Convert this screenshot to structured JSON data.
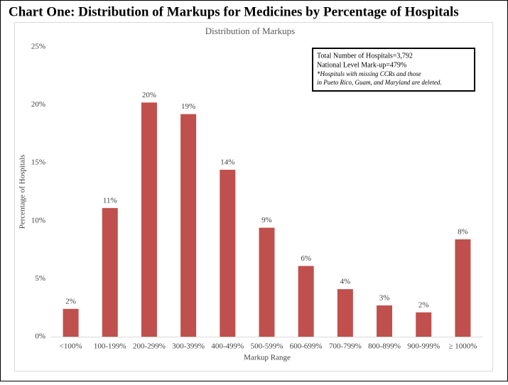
{
  "header": "Chart One: Distribution of Markups for Medicines by Percentage of Hospitals",
  "chart_data": {
    "type": "bar",
    "title": "Distribution  of Markups",
    "x_label": "Markup  Range",
    "y_label": "Percentage  of Hospitals",
    "categories": [
      "<100%",
      "100-199%",
      "200-299%",
      "300-399%",
      "400-499%",
      "500-599%",
      "600-699%",
      "700-799%",
      "800-899%",
      "900-999%",
      "≥ 1000%"
    ],
    "values": [
      2.4,
      11.1,
      20.2,
      19.2,
      14.4,
      9.4,
      6.1,
      4.1,
      2.7,
      2.1,
      8.4
    ],
    "value_labels": [
      "2%",
      "11%",
      "20%",
      "19%",
      "14%",
      "9%",
      "6%",
      "4%",
      "3%",
      "2%",
      "8%"
    ],
    "color": "#c0504d",
    "ylim": [
      0,
      25
    ],
    "yticks": [
      {
        "value": 0,
        "label": "0%"
      },
      {
        "value": 5,
        "label": "5%"
      },
      {
        "value": 10,
        "label": "10%"
      },
      {
        "value": 15,
        "label": "15%"
      },
      {
        "value": 20,
        "label": "20%"
      },
      {
        "value": 25,
        "label": "25%"
      }
    ],
    "grid": false,
    "annotations": [
      "Total Number of Hospitals=3,792",
      "National Level Mark-up=479%",
      "*Hospitals with missing CCRs and those",
      "in Pueto Rico, Guam,  and Maryland are deleted."
    ]
  }
}
